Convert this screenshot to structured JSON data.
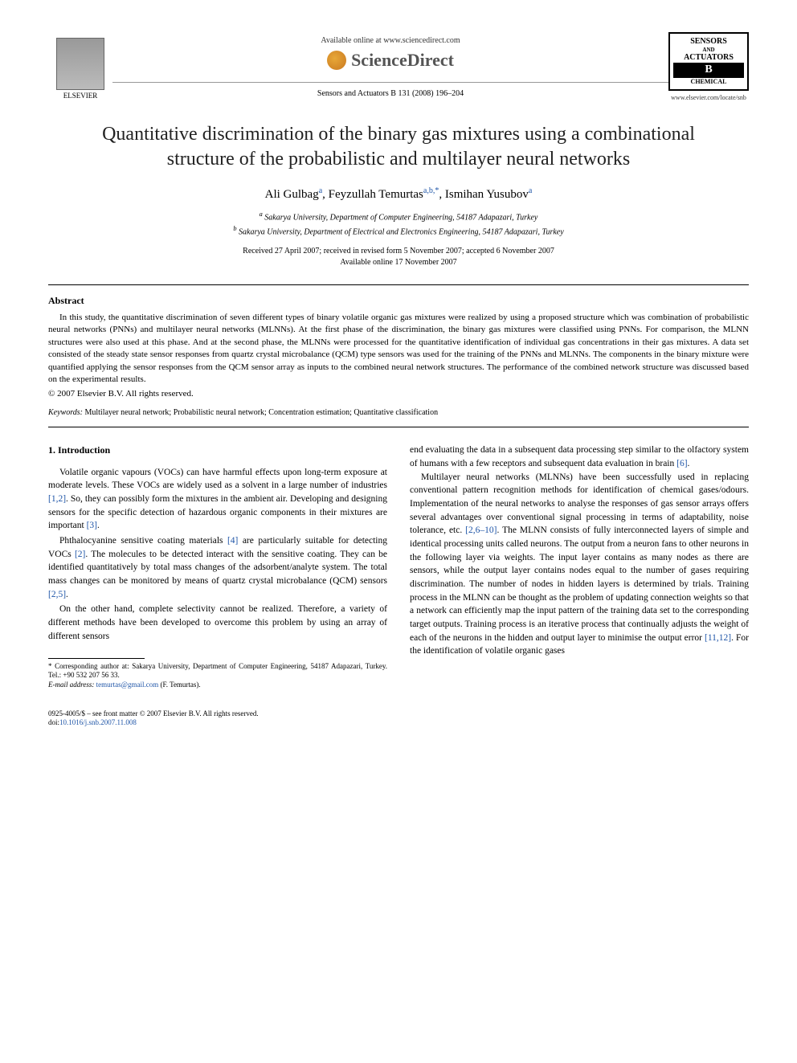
{
  "header": {
    "available_online": "Available online at www.sciencedirect.com",
    "sciencedirect": "ScienceDirect",
    "citation": "Sensors and Actuators B 131 (2008) 196–204",
    "elsevier_label": "ELSEVIER",
    "journal_badge": {
      "line1": "SENSORS",
      "line2": "ACTUATORS",
      "line3": "B",
      "line4": "CHEMICAL"
    },
    "journal_url": "www.elsevier.com/locate/snb"
  },
  "title": "Quantitative discrimination of the binary gas mixtures using a combinational structure of the probabilistic and multilayer neural networks",
  "authors": [
    {
      "name": "Ali Gulbag",
      "sup": "a"
    },
    {
      "name": "Feyzullah Temurtas",
      "sup": "a,b,*"
    },
    {
      "name": "Ismihan Yusubov",
      "sup": "a"
    }
  ],
  "affiliations": {
    "a": "Sakarya University, Department of Computer Engineering, 54187 Adapazari, Turkey",
    "b": "Sakarya University, Department of Electrical and Electronics Engineering, 54187 Adapazari, Turkey"
  },
  "dates": {
    "received": "Received 27 April 2007; received in revised form 5 November 2007; accepted 6 November 2007",
    "available": "Available online 17 November 2007"
  },
  "abstract": {
    "heading": "Abstract",
    "text": "In this study, the quantitative discrimination of seven different types of binary volatile organic gas mixtures were realized by using a proposed structure which was combination of probabilistic neural networks (PNNs) and multilayer neural networks (MLNNs). At the first phase of the discrimination, the binary gas mixtures were classified using PNNs. For comparison, the MLNN structures were also used at this phase. And at the second phase, the MLNNs were processed for the quantitative identification of individual gas concentrations in their gas mixtures. A data set consisted of the steady state sensor responses from quartz crystal microbalance (QCM) type sensors was used for the training of the PNNs and MLNNs. The components in the binary mixture were quantified applying the sensor responses from the QCM sensor array as inputs to the combined neural network structures. The performance of the combined network structure was discussed based on the experimental results.",
    "copyright": "© 2007 Elsevier B.V. All rights reserved."
  },
  "keywords": {
    "label": "Keywords:",
    "text": "Multilayer neural network; Probabilistic neural network; Concentration estimation; Quantitative classification"
  },
  "introduction": {
    "heading": "1. Introduction",
    "p1_a": "Volatile organic vapours (VOCs) can have harmful effects upon long-term exposure at moderate levels. These VOCs are widely used as a solvent in a large number of industries ",
    "p1_ref1": "[1,2]",
    "p1_b": ". So, they can possibly form the mixtures in the ambient air. Developing and designing sensors for the specific detection of hazardous organic components in their mixtures are important ",
    "p1_ref2": "[3]",
    "p1_c": ".",
    "p2_a": "Phthalocyanine sensitive coating materials ",
    "p2_ref1": "[4]",
    "p2_b": " are particularly suitable for detecting VOCs ",
    "p2_ref2": "[2]",
    "p2_c": ". The molecules to be detected interact with the sensitive coating. They can be identified quantitatively by total mass changes of the adsorbent/analyte system. The total mass changes can be monitored by means of quartz crystal microbalance (QCM) sensors ",
    "p2_ref3": "[2,5]",
    "p2_d": ".",
    "p3": "On the other hand, complete selectivity cannot be realized. Therefore, a variety of different methods have been developed to overcome this problem by using an array of different sensors",
    "p4_a": "end evaluating the data in a subsequent data processing step similar to the olfactory system of humans with a few receptors and subsequent data evaluation in brain ",
    "p4_ref1": "[6]",
    "p4_b": ".",
    "p5_a": "Multilayer neural networks (MLNNs) have been successfully used in replacing conventional pattern recognition methods for identification of chemical gases/odours. Implementation of the neural networks to analyse the responses of gas sensor arrays offers several advantages over conventional signal processing in terms of adaptability, noise tolerance, etc. ",
    "p5_ref1": "[2,6–10]",
    "p5_b": ". The MLNN consists of fully interconnected layers of simple and identical processing units called neurons. The output from a neuron fans to other neurons in the following layer via weights. The input layer contains as many nodes as there are sensors, while the output layer contains nodes equal to the number of gases requiring discrimination. The number of nodes in hidden layers is determined by trials. Training process in the MLNN can be thought as the problem of updating connection weights so that a network can efficiently map the input pattern of the training data set to the corresponding target outputs. Training process is an iterative process that continually adjusts the weight of each of the neurons in the hidden and output layer to minimise the output error ",
    "p5_ref2": "[11,12]",
    "p5_c": ". For the identification of volatile organic gases"
  },
  "footnote": {
    "corresponding": "* Corresponding author at: Sakarya University, Department of Computer Engineering, 54187 Adapazari, Turkey. Tel.: +90 532 207 56 33.",
    "email_label": "E-mail address:",
    "email": "temurtas@gmail.com",
    "email_suffix": "(F. Temurtas)."
  },
  "footer": {
    "front_matter": "0925-4005/$ – see front matter © 2007 Elsevier B.V. All rights reserved.",
    "doi_label": "doi:",
    "doi": "10.1016/j.snb.2007.11.008"
  }
}
